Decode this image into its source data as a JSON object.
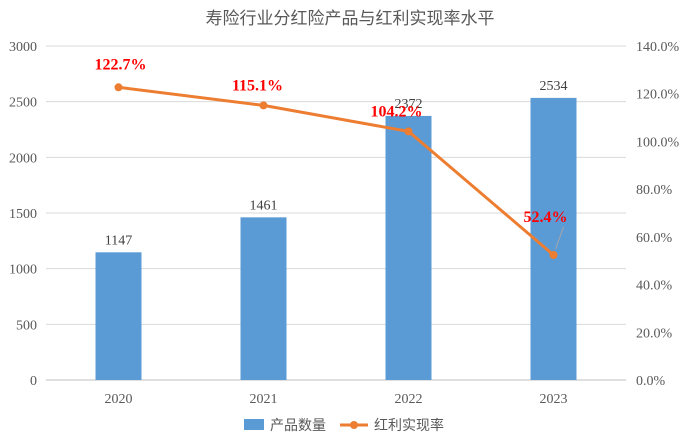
{
  "chart_data": {
    "type": "bar",
    "title": "寿险行业分红险产品与红利实现率水平",
    "categories": [
      "2020",
      "2021",
      "2022",
      "2023"
    ],
    "series": [
      {
        "name": "产品数量",
        "type": "bar",
        "axis": "left",
        "color": "#5b9bd5",
        "values": [
          1147,
          1461,
          2372,
          2534
        ],
        "value_labels": [
          "1147",
          "1461",
          "2372",
          "2534"
        ]
      },
      {
        "name": "红利实现率",
        "type": "line",
        "axis": "right",
        "color": "#ed7d31",
        "values": [
          122.7,
          115.1,
          104.2,
          52.4
        ],
        "value_labels": [
          "122.7%",
          "115.1%",
          "104.2%",
          "52.4%"
        ],
        "label_color": "#ff0000"
      }
    ],
    "left_axis": {
      "ylim": [
        0,
        3000
      ],
      "ticks": [
        "0",
        "500",
        "1000",
        "1500",
        "2000",
        "2500",
        "3000"
      ]
    },
    "right_axis": {
      "ylim": [
        0,
        140
      ],
      "ticks": [
        "0.0%",
        "20.0%",
        "40.0%",
        "60.0%",
        "80.0%",
        "100.0%",
        "120.0%",
        "140.0%"
      ]
    },
    "grid": "horizontal",
    "legend_position": "bottom"
  }
}
